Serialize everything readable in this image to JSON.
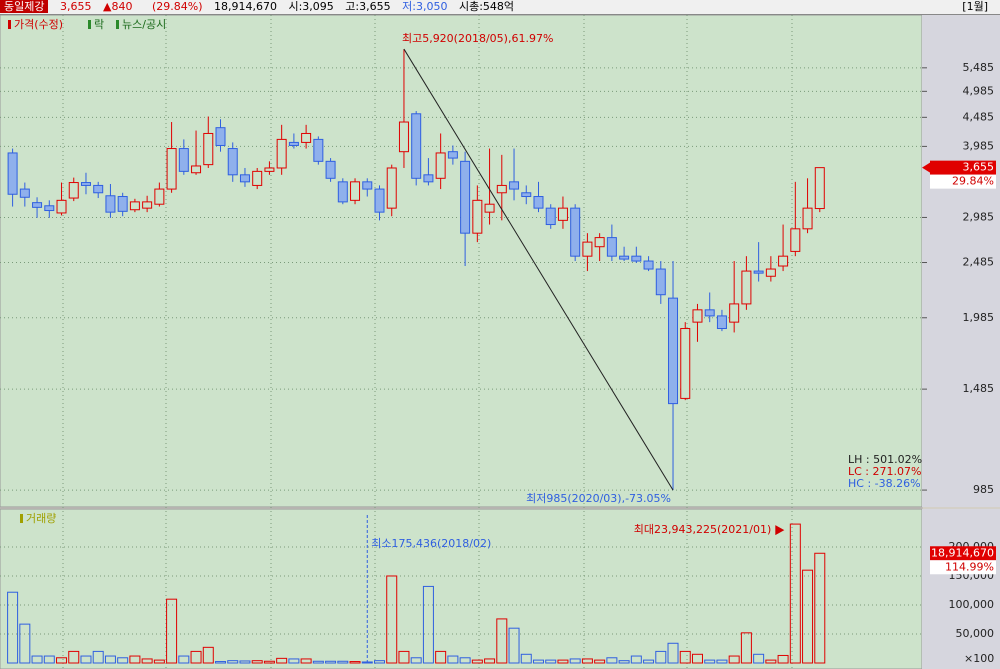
{
  "header": {
    "name": "동일제강",
    "price": "3,655",
    "change": "840",
    "change_rate": "(29.84%)",
    "volume": "18,914,670",
    "open": "시:3,095",
    "high": "고:3,655",
    "low": "저:3,050",
    "market_cap": "시총:548억",
    "period": "[1월]"
  },
  "chart_data": [
    {
      "type": "candlestick",
      "pane_labels": [
        "가격(수정)",
        "락",
        "뉴스/공시"
      ],
      "scale": "log",
      "up_color": "#e00000",
      "down_color": "#2f5fe0",
      "open": [
        3880,
        3350,
        3170,
        3130,
        3040,
        3230,
        3440,
        3400,
        3260,
        3250,
        3080,
        3100,
        3150,
        3350,
        3950,
        3580,
        3700,
        4300,
        3950,
        3550,
        3400,
        3600,
        3650,
        4050,
        4050,
        4100,
        3750,
        3450,
        3200,
        3450,
        3350,
        3100,
        3900,
        4550,
        3550,
        3500,
        3900,
        3750,
        2800,
        3050,
        3300,
        3450,
        3300,
        3250,
        3100,
        2950,
        3100,
        2550,
        2650,
        2750,
        2550,
        2550,
        2500,
        2420,
        2150,
        1430,
        1950,
        2050,
        2000,
        1950,
        2100,
        2400,
        2350,
        2450,
        2600,
        2850,
        3095
      ],
      "high": [
        3950,
        3440,
        3240,
        3200,
        3440,
        3510,
        3580,
        3450,
        3420,
        3300,
        3220,
        3260,
        3440,
        4400,
        4100,
        4250,
        4500,
        4450,
        4050,
        3650,
        3650,
        3750,
        4350,
        4200,
        4350,
        4150,
        3800,
        3500,
        3500,
        3500,
        3400,
        3700,
        5920,
        4600,
        3800,
        4200,
        4000,
        3900,
        3400,
        3950,
        3850,
        3950,
        3400,
        3450,
        3150,
        3250,
        3150,
        2800,
        2800,
        2900,
        2650,
        2650,
        2550,
        2500,
        2500,
        1950,
        2100,
        2200,
        2050,
        2500,
        2550,
        2700,
        2550,
        2900,
        3450,
        3500,
        3655
      ],
      "low": [
        3120,
        3120,
        2980,
        2980,
        3010,
        3190,
        3280,
        3230,
        2980,
        3000,
        3050,
        3050,
        3120,
        3300,
        3550,
        3550,
        3650,
        3900,
        3450,
        3380,
        3350,
        3550,
        3550,
        3950,
        3950,
        3700,
        3450,
        3150,
        3150,
        3250,
        2950,
        3000,
        3650,
        3400,
        3400,
        3350,
        3700,
        2450,
        2700,
        2900,
        2950,
        3200,
        3150,
        3050,
        2850,
        2850,
        2500,
        2400,
        2500,
        2500,
        2500,
        2480,
        2400,
        2100,
        985,
        1420,
        1800,
        1950,
        1880,
        1870,
        2050,
        2300,
        2300,
        2400,
        2550,
        2800,
        3050
      ],
      "close": [
        3280,
        3240,
        3110,
        3070,
        3200,
        3440,
        3400,
        3300,
        3050,
        3060,
        3180,
        3180,
        3350,
        3950,
        3600,
        3680,
        4200,
        4000,
        3550,
        3450,
        3600,
        3650,
        4100,
        4000,
        4200,
        3750,
        3500,
        3180,
        3450,
        3350,
        3050,
        3650,
        4400,
        3500,
        3450,
        3880,
        3800,
        2800,
        3200,
        3150,
        3400,
        3350,
        3250,
        3100,
        2900,
        3100,
        2550,
        2700,
        2750,
        2550,
        2520,
        2500,
        2420,
        2180,
        1400,
        1900,
        2050,
        2000,
        1900,
        2100,
        2400,
        2380,
        2420,
        2550,
        2850,
        3100,
        3655
      ],
      "ylim": [
        927,
        6717
      ],
      "yticks": [
        {
          "value": 985,
          "label": "985"
        },
        {
          "value": 1485,
          "label": "1,485"
        },
        {
          "value": 1985,
          "label": "1,985"
        },
        {
          "value": 2485,
          "label": "2,485"
        },
        {
          "value": 2985,
          "label": "2,985"
        },
        {
          "value": 3985,
          "label": "3,985"
        },
        {
          "value": 4485,
          "label": "4,485"
        },
        {
          "value": 4985,
          "label": "4,985"
        },
        {
          "value": 5485,
          "label": "5,485"
        }
      ],
      "grid": true,
      "high_annotation": "최고5,920(2018/05),61.97%",
      "low_annotation": "최저985(2020/03),-73.05%",
      "stats": [
        "LH : 501.02%",
        "LC : 271.07%",
        "HC : -38.26%"
      ],
      "last_price": {
        "value": 3655,
        "label": "3,655"
      },
      "last_rate": "29.84%"
    },
    {
      "type": "bar",
      "pane_label": "거래량",
      "values": [
        122000,
        67000,
        12000,
        12000,
        9000,
        20000,
        12000,
        20000,
        12000,
        9000,
        12000,
        7000,
        5000,
        110000,
        12000,
        20000,
        27000,
        2500,
        4000,
        3500,
        4000,
        3000,
        8000,
        7000,
        7000,
        3000,
        3000,
        3000,
        2500,
        1754,
        4000,
        150000,
        20000,
        9000,
        132000,
        20000,
        12000,
        9000,
        5000,
        7000,
        76000,
        60000,
        15000,
        5000,
        5000,
        5000,
        7000,
        7000,
        5000,
        9000,
        4000,
        12000,
        5000,
        20000,
        34000,
        20000,
        15000,
        5000,
        5000,
        12000,
        52000,
        15000,
        5000,
        13000,
        239432,
        160000,
        189147
      ],
      "ylim": [
        0,
        262000
      ],
      "yticks": [
        {
          "value": 50000,
          "label": "50,000"
        },
        {
          "value": 100000,
          "label": "100,000"
        },
        {
          "value": 150000,
          "label": "150,000"
        },
        {
          "value": 200000,
          "label": "200,000"
        }
      ],
      "unit": "×100",
      "min_annotation": "최소175,436(2018/02)",
      "max_annotation": "최대23,943,225(2021/01)",
      "last_volume": "18,914,670",
      "last_volume_rate": "114.99%"
    }
  ]
}
